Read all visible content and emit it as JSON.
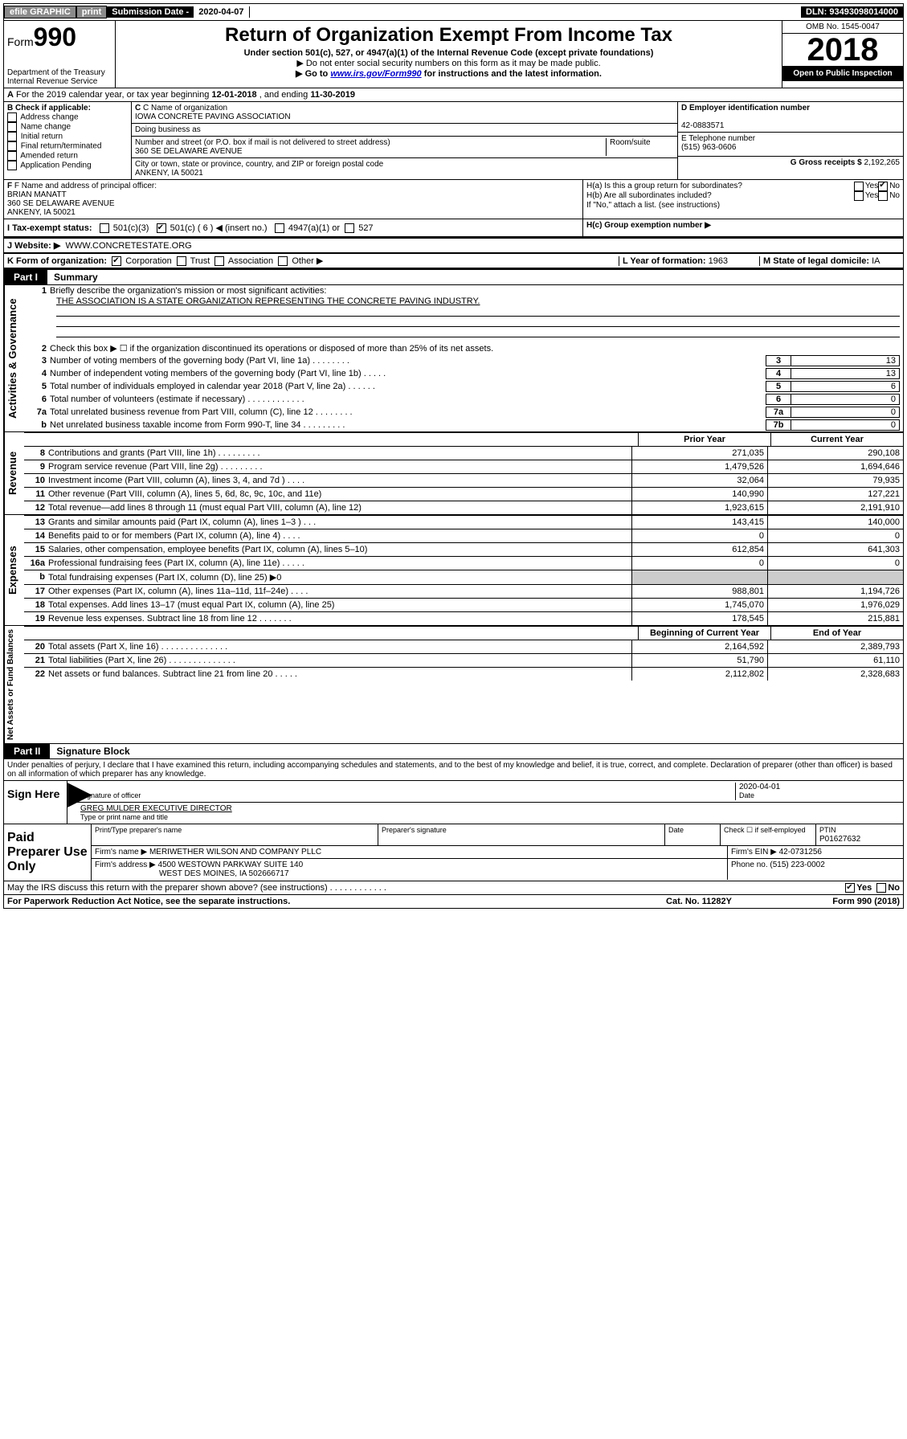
{
  "topbar": {
    "efile": "efile GRAPHIC",
    "print": "print",
    "sub_label": "Submission Date - ",
    "sub_date": "2020-04-07",
    "dln": "DLN: 93493098014000"
  },
  "header": {
    "form": "Form",
    "num": "990",
    "dept": "Department of the Treasury\nInternal Revenue Service",
    "title": "Return of Organization Exempt From Income Tax",
    "subtitle": "Under section 501(c), 527, or 4947(a)(1) of the Internal Revenue Code (except private foundations)",
    "note1": "▶ Do not enter social security numbers on this form as it may be made public.",
    "note2": "▶ Go to www.irs.gov/Form990 for instructions and the latest information.",
    "omb": "OMB No. 1545-0047",
    "year": "2018",
    "open": "Open to Public Inspection"
  },
  "rowA": "A For the 2019 calendar year, or tax year beginning 12-01-2018   , and ending 11-30-2019",
  "boxB": {
    "label": "B Check if applicable:",
    "opts": [
      "Address change",
      "Name change",
      "Initial return",
      "Final return/terminated",
      "Amended return",
      "Application Pending"
    ]
  },
  "boxC": {
    "name_label": "C Name of organization",
    "name": "IOWA CONCRETE PAVING ASSOCIATION",
    "dba_label": "Doing business as",
    "dba": "",
    "addr_label": "Number and street (or P.O. box if mail is not delivered to street address)",
    "room_label": "Room/suite",
    "addr": "360 SE DELAWARE AVENUE",
    "city_label": "City or town, state or province, country, and ZIP or foreign postal code",
    "city": "ANKENY, IA  50021"
  },
  "boxD": {
    "label": "D Employer identification number",
    "val": "42-0883571"
  },
  "boxE": {
    "label": "E Telephone number",
    "val": "(515) 963-0606"
  },
  "boxG": {
    "label": "G Gross receipts $",
    "val": "2,192,265"
  },
  "boxF": {
    "label": "F Name and address of principal officer:",
    "name": "BRIAN MANATT",
    "addr": "360 SE DELAWARE AVENUE\nANKENY, IA  50021"
  },
  "boxH": {
    "a": "H(a)  Is this a group return for subordinates?",
    "b": "H(b)  Are all subordinates included?",
    "b_note": "If \"No,\" attach a list. (see instructions)",
    "c": "H(c)  Group exemption number ▶"
  },
  "boxI": {
    "label": "I  Tax-exempt status:",
    "insert": "501(c) ( 6 ) ◀ (insert no.)"
  },
  "boxJ": {
    "label": "J  Website: ▶",
    "val": "WWW.CONCRETESTATE.ORG"
  },
  "boxK": {
    "label": "K Form of organization:"
  },
  "boxL": {
    "label": "L Year of formation:",
    "val": "1963"
  },
  "boxM": {
    "label": "M State of legal domicile:",
    "val": "IA"
  },
  "part1": {
    "tab": "Part I",
    "title": "Summary"
  },
  "gov": {
    "label": "Activities & Governance",
    "l1": "Briefly describe the organization's mission or most significant activities:",
    "l1v": "THE ASSOCIATION IS A STATE ORGANIZATION REPRESENTING THE CONCRETE PAVING INDUSTRY.",
    "l2": "Check this box ▶ ☐  if the organization discontinued its operations or disposed of more than 25% of its net assets.",
    "l3": "Number of voting members of the governing body (Part VI, line 1a)  .   .   .   .   .   .   .   .",
    "l3v": "13",
    "l4": "Number of independent voting members of the governing body (Part VI, line 1b)  .   .   .   .   .",
    "l4v": "13",
    "l5": "Total number of individuals employed in calendar year 2018 (Part V, line 2a)  .   .   .   .   .   .",
    "l5v": "6",
    "l6": "Total number of volunteers (estimate if necessary)  .   .   .   .   .   .   .   .   .   .   .   .",
    "l6v": "0",
    "l7a": "Total unrelated business revenue from Part VIII, column (C), line 12  .   .   .   .   .   .   .   .",
    "l7av": "0",
    "l7b": "Net unrelated business taxable income from Form 990-T, line 34  .   .   .   .   .   .   .   .   .",
    "l7bv": "0"
  },
  "colheads": {
    "prior": "Prior Year",
    "curr": "Current Year",
    "beg": "Beginning of Current Year",
    "end": "End of Year"
  },
  "rev": {
    "label": "Revenue",
    "rows": [
      {
        "n": "8",
        "t": "Contributions and grants (Part VIII, line 1h)  .   .   .   .   .   .   .   .   .",
        "p": "271,035",
        "c": "290,108"
      },
      {
        "n": "9",
        "t": "Program service revenue (Part VIII, line 2g)   .   .   .   .   .   .   .   .   .",
        "p": "1,479,526",
        "c": "1,694,646"
      },
      {
        "n": "10",
        "t": "Investment income (Part VIII, column (A), lines 3, 4, and 7d )  .   .   .   .",
        "p": "32,064",
        "c": "79,935"
      },
      {
        "n": "11",
        "t": "Other revenue (Part VIII, column (A), lines 5, 6d, 8c, 9c, 10c, and 11e)",
        "p": "140,990",
        "c": "127,221"
      },
      {
        "n": "12",
        "t": "Total revenue—add lines 8 through 11 (must equal Part VIII, column (A), line 12)",
        "p": "1,923,615",
        "c": "2,191,910"
      }
    ]
  },
  "exp": {
    "label": "Expenses",
    "rows": [
      {
        "n": "13",
        "t": "Grants and similar amounts paid (Part IX, column (A), lines 1–3 )  .   .   .",
        "p": "143,415",
        "c": "140,000"
      },
      {
        "n": "14",
        "t": "Benefits paid to or for members (Part IX, column (A), line 4)   .   .   .   .",
        "p": "0",
        "c": "0"
      },
      {
        "n": "15",
        "t": "Salaries, other compensation, employee benefits (Part IX, column (A), lines 5–10)",
        "p": "612,854",
        "c": "641,303"
      },
      {
        "n": "16a",
        "t": "Professional fundraising fees (Part IX, column (A), line 11e)   .   .   .   .   .",
        "p": "0",
        "c": "0"
      },
      {
        "n": "b",
        "t": "Total fundraising expenses (Part IX, column (D), line 25) ▶0",
        "p": "",
        "c": "",
        "gray": true
      },
      {
        "n": "17",
        "t": "Other expenses (Part IX, column (A), lines 11a–11d, 11f–24e)  .   .   .   .",
        "p": "988,801",
        "c": "1,194,726"
      },
      {
        "n": "18",
        "t": "Total expenses. Add lines 13–17 (must equal Part IX, column (A), line 25)",
        "p": "1,745,070",
        "c": "1,976,029"
      },
      {
        "n": "19",
        "t": "Revenue less expenses. Subtract line 18 from line 12  .   .   .   .   .   .   .",
        "p": "178,545",
        "c": "215,881"
      }
    ]
  },
  "net": {
    "label": "Net Assets or Fund Balances",
    "rows": [
      {
        "n": "20",
        "t": "Total assets (Part X, line 16)  .   .   .   .   .   .   .   .   .   .   .   .   .   .",
        "p": "2,164,592",
        "c": "2,389,793"
      },
      {
        "n": "21",
        "t": "Total liabilities (Part X, line 26)  .   .   .   .   .   .   .   .   .   .   .   .   .   .",
        "p": "51,790",
        "c": "61,110"
      },
      {
        "n": "22",
        "t": "Net assets or fund balances. Subtract line 21 from line 20  .   .   .   .   .",
        "p": "2,112,802",
        "c": "2,328,683"
      }
    ]
  },
  "part2": {
    "tab": "Part II",
    "title": "Signature Block"
  },
  "sig": {
    "decl": "Under penalties of perjury, I declare that I have examined this return, including accompanying schedules and statements, and to the best of my knowledge and belief, it is true, correct, and complete. Declaration of preparer (other than officer) is based on all information of which preparer has any knowledge.",
    "sign_here": "Sign Here",
    "sig_officer": "Signature of officer",
    "date": "2020-04-01",
    "date_label": "Date",
    "name": "GREG MULDER  EXECUTIVE DIRECTOR",
    "name_label": "Type or print name and title"
  },
  "prep": {
    "label": "Paid Preparer Use Only",
    "h1": "Print/Type preparer's name",
    "h2": "Preparer's signature",
    "h3": "Date",
    "h4": "Check ☐ if self-employed",
    "h5": "PTIN",
    "ptin": "P01627632",
    "firm_label": "Firm's name    ▶",
    "firm": "MERIWETHER WILSON AND COMPANY PLLC",
    "ein_label": "Firm's EIN ▶",
    "ein": "42-0731256",
    "addr_label": "Firm's address ▶",
    "addr": "4500 WESTOWN PARKWAY SUITE 140",
    "city": "WEST DES MOINES, IA  502666717",
    "phone_label": "Phone no.",
    "phone": "(515) 223-0002"
  },
  "footer": {
    "q": "May the IRS discuss this return with the preparer shown above? (see instructions)   .    .    .    .    .    .    .    .    .    .    .    .",
    "notice": "For Paperwork Reduction Act Notice, see the separate instructions.",
    "cat": "Cat. No. 11282Y",
    "form": "Form 990 (2018)"
  }
}
